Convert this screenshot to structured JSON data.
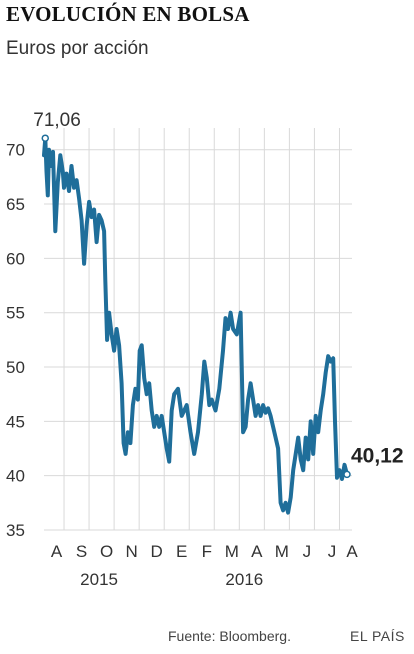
{
  "chart_data": {
    "type": "line",
    "title": "EVOLUCIÓN EN BOLSA",
    "subtitle": "Euros por acción",
    "ylim": [
      35,
      72
    ],
    "yticks": [
      35,
      40,
      45,
      50,
      55,
      60,
      65,
      70
    ],
    "ytick_labels": [
      "35",
      "40",
      "45",
      "50",
      "55",
      "60",
      "65",
      "70"
    ],
    "x_range": [
      0,
      12.3
    ],
    "month_ticks": [
      {
        "label": "A",
        "x": 0.5
      },
      {
        "label": "S",
        "x": 1.5
      },
      {
        "label": "O",
        "x": 2.5
      },
      {
        "label": "N",
        "x": 3.5
      },
      {
        "label": "D",
        "x": 4.5
      },
      {
        "label": "E",
        "x": 5.5
      },
      {
        "label": "F",
        "x": 6.5
      },
      {
        "label": "M",
        "x": 7.5
      },
      {
        "label": "A",
        "x": 8.5
      },
      {
        "label": "M",
        "x": 9.5
      },
      {
        "label": "J",
        "x": 10.5
      },
      {
        "label": "J",
        "x": 11.5
      },
      {
        "label": "A",
        "x": 12.3
      }
    ],
    "vertical_gridlines_x": [
      0.8,
      1.8,
      2.8,
      3.8,
      4.8,
      5.8,
      6.8,
      7.8,
      8.8,
      9.8,
      10.8,
      11.8
    ],
    "year_labels": [
      {
        "label": "2015",
        "x": 2.2
      },
      {
        "label": "2016",
        "x": 8.0
      }
    ],
    "grid": true,
    "series": [
      {
        "color": "#1f6e9a",
        "points": [
          [
            0.0,
            69.5
          ],
          [
            0.05,
            71.06
          ],
          [
            0.1,
            68.0
          ],
          [
            0.15,
            65.8
          ],
          [
            0.2,
            70.0
          ],
          [
            0.28,
            68.5
          ],
          [
            0.36,
            69.8
          ],
          [
            0.45,
            62.5
          ],
          [
            0.55,
            67.0
          ],
          [
            0.65,
            69.5
          ],
          [
            0.75,
            68.0
          ],
          [
            0.8,
            66.5
          ],
          [
            0.9,
            67.8
          ],
          [
            1.0,
            66.2
          ],
          [
            1.1,
            68.5
          ],
          [
            1.2,
            66.5
          ],
          [
            1.3,
            67.2
          ],
          [
            1.4,
            65.5
          ],
          [
            1.5,
            63.5
          ],
          [
            1.6,
            59.5
          ],
          [
            1.7,
            63.0
          ],
          [
            1.8,
            65.2
          ],
          [
            1.9,
            63.8
          ],
          [
            2.0,
            64.5
          ],
          [
            2.1,
            61.5
          ],
          [
            2.2,
            64.0
          ],
          [
            2.3,
            63.5
          ],
          [
            2.4,
            62.5
          ],
          [
            2.45,
            58.0
          ],
          [
            2.52,
            52.5
          ],
          [
            2.6,
            55.0
          ],
          [
            2.7,
            53.0
          ],
          [
            2.8,
            51.5
          ],
          [
            2.9,
            53.5
          ],
          [
            3.0,
            52.0
          ],
          [
            3.1,
            48.5
          ],
          [
            3.18,
            43.0
          ],
          [
            3.26,
            42.0
          ],
          [
            3.35,
            44.0
          ],
          [
            3.45,
            43.0
          ],
          [
            3.55,
            46.5
          ],
          [
            3.65,
            48.0
          ],
          [
            3.75,
            47.0
          ],
          [
            3.82,
            51.5
          ],
          [
            3.9,
            52.0
          ],
          [
            4.0,
            49.0
          ],
          [
            4.1,
            47.5
          ],
          [
            4.2,
            48.5
          ],
          [
            4.3,
            46.0
          ],
          [
            4.4,
            44.5
          ],
          [
            4.5,
            45.5
          ],
          [
            4.6,
            44.5
          ],
          [
            4.7,
            45.5
          ],
          [
            4.8,
            44.0
          ],
          [
            4.9,
            42.5
          ],
          [
            5.0,
            41.3
          ],
          [
            5.1,
            46.0
          ],
          [
            5.2,
            47.5
          ],
          [
            5.35,
            48.0
          ],
          [
            5.5,
            45.5
          ],
          [
            5.7,
            46.5
          ],
          [
            5.85,
            44.0
          ],
          [
            6.0,
            42.0
          ],
          [
            6.15,
            44.0
          ],
          [
            6.3,
            47.5
          ],
          [
            6.4,
            50.5
          ],
          [
            6.5,
            49.0
          ],
          [
            6.6,
            46.5
          ],
          [
            6.7,
            47.0
          ],
          [
            6.85,
            46.0
          ],
          [
            7.0,
            48.0
          ],
          [
            7.15,
            51.5
          ],
          [
            7.25,
            54.5
          ],
          [
            7.35,
            53.5
          ],
          [
            7.45,
            55.0
          ],
          [
            7.55,
            53.5
          ],
          [
            7.7,
            53.0
          ],
          [
            7.85,
            55.0
          ],
          [
            7.95,
            44.0
          ],
          [
            8.05,
            44.5
          ],
          [
            8.15,
            47.0
          ],
          [
            8.25,
            48.5
          ],
          [
            8.35,
            47.0
          ],
          [
            8.45,
            45.5
          ],
          [
            8.55,
            46.5
          ],
          [
            8.65,
            45.5
          ],
          [
            8.75,
            46.5
          ],
          [
            8.85,
            45.8
          ],
          [
            8.95,
            46.2
          ],
          [
            9.05,
            45.5
          ],
          [
            9.15,
            44.5
          ],
          [
            9.25,
            43.5
          ],
          [
            9.35,
            42.5
          ],
          [
            9.45,
            37.5
          ],
          [
            9.55,
            36.8
          ],
          [
            9.65,
            37.5
          ],
          [
            9.75,
            36.6
          ],
          [
            9.85,
            38.0
          ],
          [
            9.95,
            40.5
          ],
          [
            10.05,
            42.0
          ],
          [
            10.15,
            43.5
          ],
          [
            10.25,
            41.5
          ],
          [
            10.35,
            40.5
          ],
          [
            10.45,
            43.5
          ],
          [
            10.55,
            41.5
          ],
          [
            10.65,
            45.0
          ],
          [
            10.75,
            42.0
          ],
          [
            10.85,
            45.5
          ],
          [
            10.95,
            44.0
          ],
          [
            11.05,
            46.0
          ],
          [
            11.15,
            47.5
          ],
          [
            11.25,
            49.5
          ],
          [
            11.35,
            51.0
          ],
          [
            11.45,
            50.5
          ],
          [
            11.55,
            50.8
          ],
          [
            11.62,
            45.0
          ],
          [
            11.7,
            39.8
          ],
          [
            11.8,
            40.5
          ],
          [
            11.9,
            39.7
          ],
          [
            12.0,
            41.0
          ],
          [
            12.1,
            40.12
          ]
        ]
      }
    ],
    "annotations": [
      {
        "label": "71,06",
        "x": 0.05,
        "y": 71.06,
        "style": "normal"
      },
      {
        "label": "40,12",
        "x": 12.1,
        "y": 40.12,
        "style": "bold"
      }
    ]
  },
  "footer": {
    "source": "Fuente: Bloomberg.",
    "brand": "EL PAÍS"
  }
}
